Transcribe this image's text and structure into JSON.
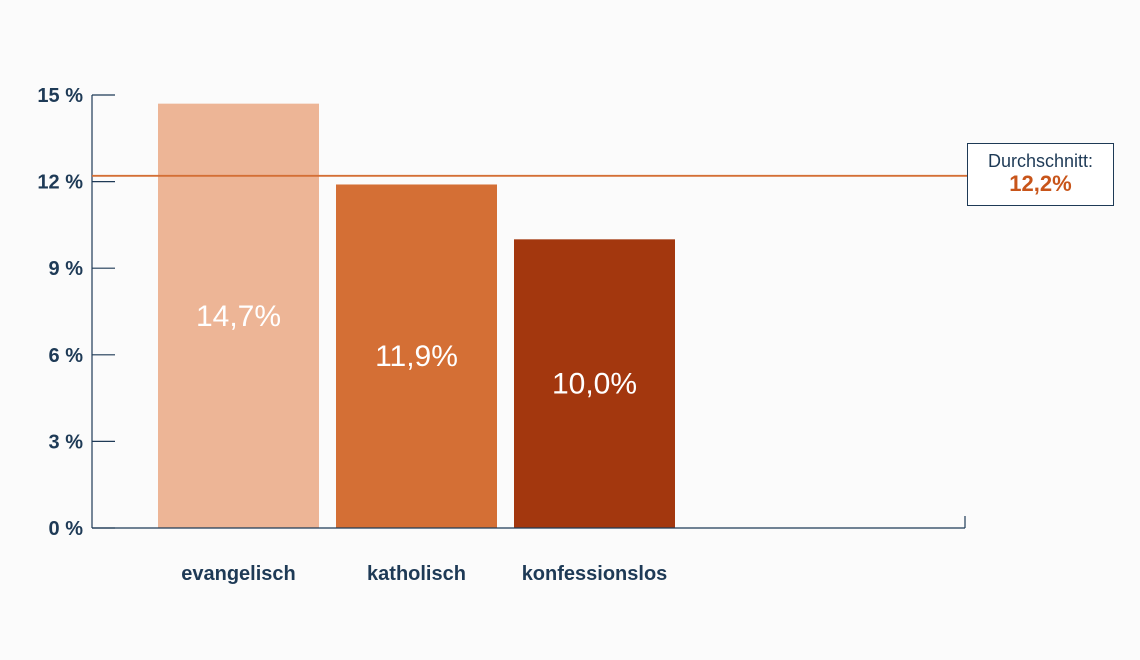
{
  "chart_data": {
    "type": "bar",
    "categories": [
      "evangelisch",
      "katholisch",
      "konfessionslos"
    ],
    "values": [
      14.7,
      11.9,
      10.0
    ],
    "value_labels": [
      "14,7%",
      "11,9%",
      "10,0%"
    ],
    "colors": [
      "#edb596",
      "#d46f35",
      "#a3370e"
    ],
    "ylim": [
      0,
      15
    ],
    "yticks": [
      0,
      3,
      6,
      9,
      12,
      15
    ],
    "ytick_labels": [
      "0 %",
      "3 %",
      "6 %",
      "9 %",
      "12 %",
      "15 %"
    ],
    "title": "",
    "xlabel": "",
    "ylabel": "",
    "grid": false,
    "reference_line": {
      "value": 12.2,
      "color": "#d46f35",
      "label": "Durchschnitt:",
      "value_label": "12,2%"
    },
    "axis_color": "#1e3a56"
  }
}
